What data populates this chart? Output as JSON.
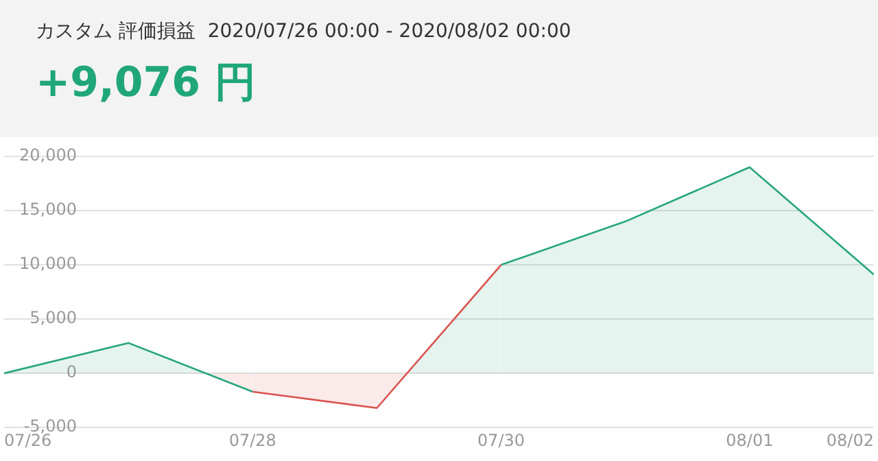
{
  "chart_data": {
    "type": "area",
    "title": "カスタム 評価損益  2020/07/26 00:00 - 2020/08/02 00:00",
    "subtitle": "+9,076 円",
    "x": [
      "2020-07-26",
      "2020-07-27",
      "2020-07-28",
      "2020-07-29",
      "2020-07-30",
      "2020-07-31",
      "2020-08-01",
      "2020-08-02"
    ],
    "series": [
      {
        "color": "#26a67d",
        "colors": [
          "#26a67d",
          "#26a67d",
          "#d9534f",
          "#d9534f",
          "#26a67d",
          "#26a67d",
          "#26a67d",
          "#26a67d"
        ],
        "values": [
          0,
          2800,
          -1700,
          -3200,
          10000,
          14000,
          19000,
          9100
        ]
      }
    ],
    "xlim": [
      "2020-07-26",
      "2020-08-02"
    ],
    "xticks": [
      {
        "value": "2020-07-26",
        "label": "07/26"
      },
      {
        "value": "2020-07-28",
        "label": "07/28"
      },
      {
        "value": "2020-07-30",
        "label": "07/30"
      },
      {
        "value": "2020-08-01",
        "label": "08/01"
      },
      {
        "value": "2020-08-02",
        "label": "08/02"
      }
    ],
    "ylim": [
      -5000,
      20000
    ],
    "yticks": [
      {
        "value": -5000,
        "label": "-5,000"
      },
      0,
      {
        "value": 5000,
        "label": "5,000"
      },
      {
        "value": 10000,
        "label": "10,000"
      },
      {
        "value": 15000,
        "label": "15,000"
      },
      {
        "value": 20000,
        "label": "20,000"
      }
    ],
    "grid": "y",
    "legend": false,
    "marker": "none"
  }
}
